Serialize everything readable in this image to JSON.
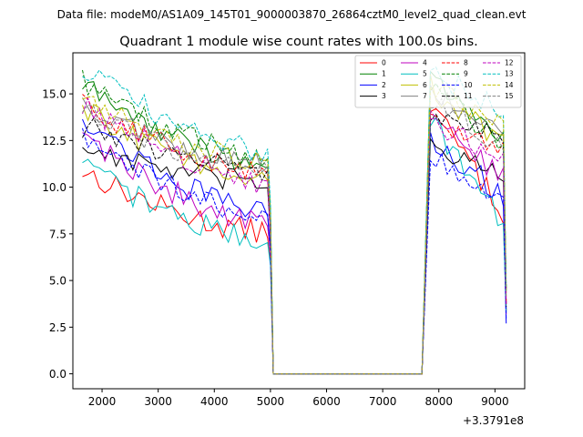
{
  "chart_data": {
    "type": "line",
    "suptitle": "Data file: modeM0/AS1A09_145T01_9000003870_26864cztM0_level2_quad_clean.evt",
    "title": "Quadrant 1 module wise count rates with 100.0s bins.",
    "xlabel": "",
    "ylabel": "",
    "x_offset_label": "+3.3791e8",
    "xlim": [
      1480,
      9530
    ],
    "ylim": [
      -0.8,
      17.2
    ],
    "xticks": [
      2000,
      3000,
      4000,
      5000,
      6000,
      7000,
      8000,
      9000
    ],
    "yticks": [
      0.0,
      2.5,
      5.0,
      7.5,
      10.0,
      12.5,
      15.0
    ],
    "ytick_labels": [
      "0.0",
      "2.5",
      "5.0",
      "7.5",
      "10.0",
      "12.5",
      "15.0"
    ],
    "grid": false,
    "legend_position": "top-right",
    "segments": {
      "seg1": {
        "x_start": 1650,
        "x_end": 4950,
        "step": 100
      },
      "drop_x": [
        5000,
        5050
      ],
      "zero_x": [
        5050,
        7750
      ],
      "seg2": {
        "x_start": 7850,
        "x_end": 9150,
        "step": 100
      }
    },
    "series": [
      {
        "name": "0",
        "color": "#ff0000",
        "dash": "solid",
        "start": 10.9,
        "end": 7.6,
        "drop": [
          6.0,
          0.0
        ],
        "seg2_start": 14.5,
        "seg2_end": 8.6,
        "final": 3.8
      },
      {
        "name": "1",
        "color": "#008000",
        "dash": "solid",
        "start": 15.5,
        "end": 11.3,
        "drop": [
          8.8,
          0.0
        ],
        "seg2_start": 15.6,
        "seg2_end": 12.9,
        "final": 4.5
      },
      {
        "name": "2",
        "color": "#0000ff",
        "dash": "solid",
        "start": 13.8,
        "end": 8.7,
        "drop": [
          6.8,
          0.0
        ],
        "seg2_start": 12.6,
        "seg2_end": 9.6,
        "final": 2.7
      },
      {
        "name": "3",
        "color": "#000000",
        "dash": "solid",
        "start": 12.2,
        "end": 10.2,
        "drop": [
          7.5,
          0.0
        ],
        "seg2_start": 12.5,
        "seg2_end": 10.3,
        "final": 3.4
      },
      {
        "name": "4",
        "color": "#bf00bf",
        "dash": "solid",
        "start": 12.9,
        "end": 8.1,
        "drop": [
          6.5,
          0.0
        ],
        "seg2_start": 13.8,
        "seg2_end": 10.4,
        "final": 3.2
      },
      {
        "name": "5",
        "color": "#00bfbf",
        "dash": "solid",
        "start": 11.2,
        "end": 7.2,
        "drop": [
          5.8,
          0.0
        ],
        "seg2_start": 13.7,
        "seg2_end": 8.1,
        "final": 3.3
      },
      {
        "name": "6",
        "color": "#bfbf00",
        "dash": "solid",
        "start": 14.2,
        "end": 10.5,
        "drop": [
          7.9,
          0.0
        ],
        "seg2_start": 15.4,
        "seg2_end": 12.2,
        "final": 4.3
      },
      {
        "name": "7",
        "color": "#808080",
        "dash": "solid",
        "start": 14.5,
        "end": 11.2,
        "drop": [
          8.5,
          0.0
        ],
        "seg2_start": 15.1,
        "seg2_end": 12.9,
        "final": 4.4
      },
      {
        "name": "8",
        "color": "#ff0000",
        "dash": "dashed",
        "start": 14.6,
        "end": 10.8,
        "drop": [
          7.6,
          0.0
        ],
        "seg2_start": 13.8,
        "seg2_end": 11.9,
        "final": 3.9
      },
      {
        "name": "9",
        "color": "#008000",
        "dash": "dashed",
        "start": 15.8,
        "end": 11.6,
        "drop": [
          8.7,
          0.0
        ],
        "seg2_start": 15.3,
        "seg2_end": 12.4,
        "final": 4.6
      },
      {
        "name": "10",
        "color": "#0000ff",
        "dash": "dashed",
        "start": 12.6,
        "end": 8.6,
        "drop": [
          6.4,
          0.0
        ],
        "seg2_start": 11.8,
        "seg2_end": 9.0,
        "final": 2.9
      },
      {
        "name": "11",
        "color": "#000000",
        "dash": "dashed",
        "start": 13.3,
        "end": 10.9,
        "drop": [
          7.7,
          0.0
        ],
        "seg2_start": 14.2,
        "seg2_end": 12.6,
        "final": 3.6
      },
      {
        "name": "12",
        "color": "#bf00bf",
        "dash": "dashed",
        "start": 14.5,
        "end": 10.3,
        "drop": [
          7.3,
          0.0
        ],
        "seg2_start": 13.7,
        "seg2_end": 11.4,
        "final": 3.7
      },
      {
        "name": "13",
        "color": "#00bfbf",
        "dash": "dashed",
        "start": 16.4,
        "end": 12.0,
        "drop": [
          9.1,
          0.0
        ],
        "seg2_start": 16.1,
        "seg2_end": 14.1,
        "final": 4.7
      },
      {
        "name": "14",
        "color": "#bfbf00",
        "dash": "dashed",
        "start": 15.1,
        "end": 11.4,
        "drop": [
          8.3,
          0.0
        ],
        "seg2_start": 15.5,
        "seg2_end": 13.2,
        "final": 4.5
      },
      {
        "name": "15",
        "color": "#808080",
        "dash": "dashed",
        "start": 14.3,
        "end": 10.9,
        "drop": [
          8.0,
          0.0
        ],
        "seg2_start": 14.6,
        "seg2_end": 12.3,
        "final": 4.1
      }
    ]
  }
}
